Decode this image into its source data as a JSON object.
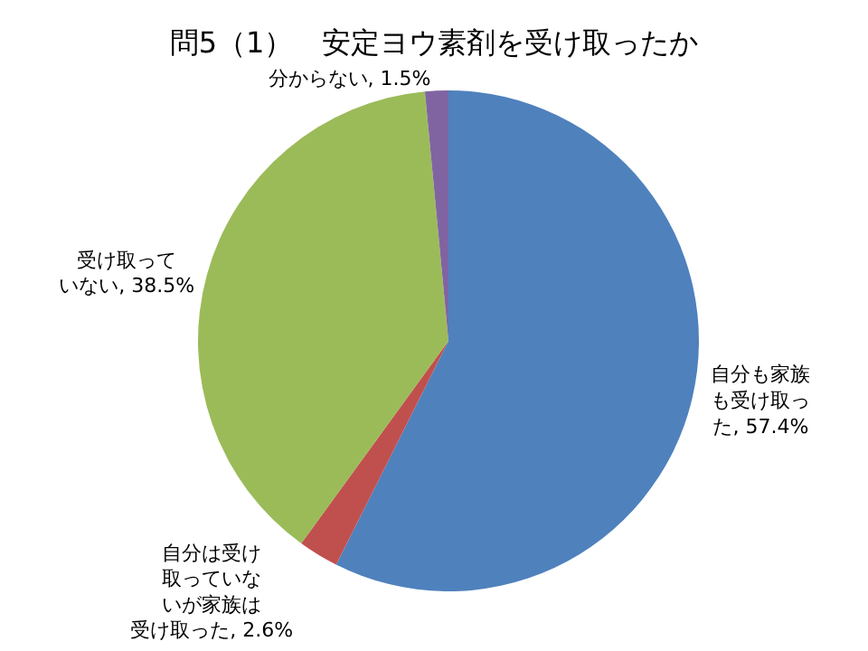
{
  "chart_data": {
    "type": "pie",
    "title": "問5（1）　安定ヨウ素剤を受け取ったか",
    "categories": [
      "自分も家族も受け取った",
      "自分は受け取っていないが家族は受け取った",
      "受け取っていない",
      "分からない"
    ],
    "values": [
      57.4,
      2.6,
      38.5,
      1.5
    ],
    "value_labels": [
      "57.4%",
      "2.6%",
      "38.5%",
      "1.5%"
    ],
    "colors": [
      "#4f81bd",
      "#c0504d",
      "#9bbb59",
      "#8064a2"
    ],
    "legend": false
  }
}
